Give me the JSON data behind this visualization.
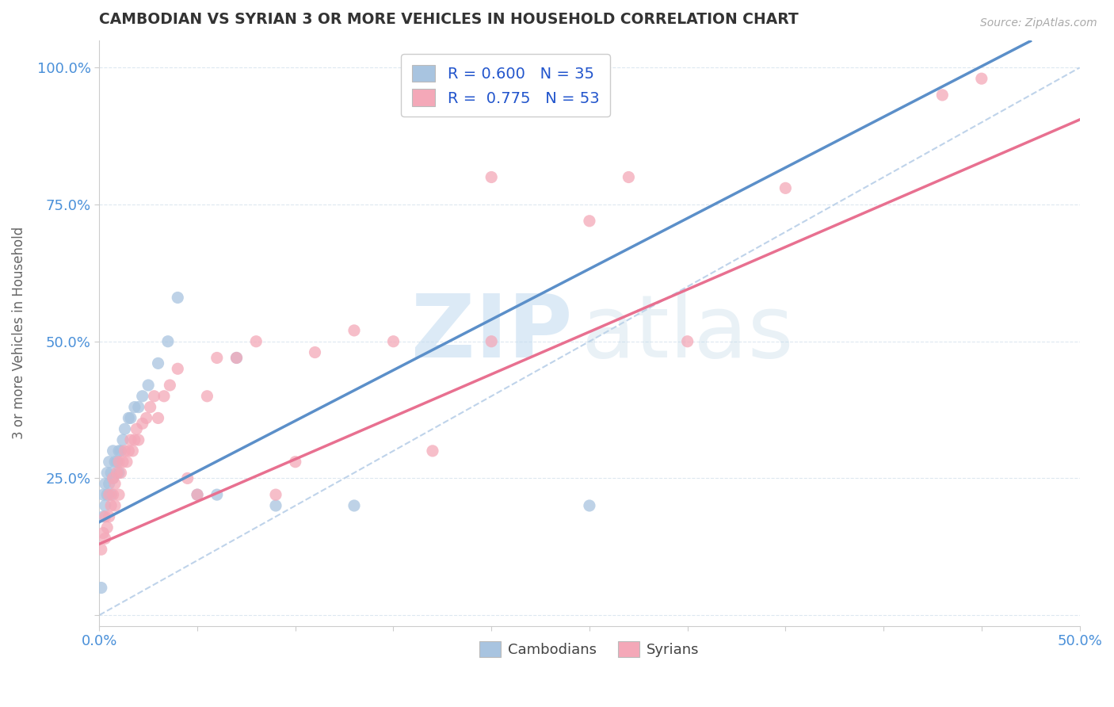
{
  "title": "CAMBODIAN VS SYRIAN 3 OR MORE VEHICLES IN HOUSEHOLD CORRELATION CHART",
  "source": "Source: ZipAtlas.com",
  "ylabel": "3 or more Vehicles in Household",
  "xlim": [
    0.0,
    0.5
  ],
  "ylim": [
    -0.02,
    1.05
  ],
  "yticks": [
    0.0,
    0.25,
    0.5,
    0.75,
    1.0
  ],
  "yticklabels": [
    "",
    "25.0%",
    "50.0%",
    "75.0%",
    "100.0%"
  ],
  "cambodian_R": 0.6,
  "cambodian_N": 35,
  "syrian_R": 0.775,
  "syrian_N": 53,
  "cambodian_color": "#a8c4e0",
  "syrian_color": "#f4a8b8",
  "cambodian_line_color": "#5b8fc9",
  "syrian_line_color": "#e87090",
  "background_color": "#ffffff",
  "grid_color": "#dde8f0",
  "title_color": "#333333",
  "axis_label_color": "#4a90d9",
  "cam_slope": 1.85,
  "cam_intercept": 0.17,
  "syr_slope": 1.55,
  "syr_intercept": 0.13,
  "cambodian_x": [
    0.001,
    0.002,
    0.002,
    0.003,
    0.003,
    0.004,
    0.004,
    0.005,
    0.005,
    0.006,
    0.006,
    0.007,
    0.007,
    0.008,
    0.009,
    0.01,
    0.01,
    0.011,
    0.012,
    0.013,
    0.015,
    0.016,
    0.018,
    0.02,
    0.022,
    0.025,
    0.03,
    0.035,
    0.04,
    0.05,
    0.06,
    0.07,
    0.09,
    0.13,
    0.25
  ],
  "cambodian_y": [
    0.05,
    0.18,
    0.22,
    0.2,
    0.24,
    0.22,
    0.26,
    0.24,
    0.28,
    0.22,
    0.26,
    0.25,
    0.3,
    0.28,
    0.28,
    0.26,
    0.3,
    0.3,
    0.32,
    0.34,
    0.36,
    0.36,
    0.38,
    0.38,
    0.4,
    0.42,
    0.46,
    0.5,
    0.58,
    0.22,
    0.22,
    0.47,
    0.2,
    0.2,
    0.2
  ],
  "syrian_x": [
    0.001,
    0.002,
    0.003,
    0.003,
    0.004,
    0.005,
    0.005,
    0.006,
    0.007,
    0.007,
    0.008,
    0.008,
    0.009,
    0.01,
    0.01,
    0.011,
    0.012,
    0.013,
    0.014,
    0.015,
    0.016,
    0.017,
    0.018,
    0.019,
    0.02,
    0.022,
    0.024,
    0.026,
    0.028,
    0.03,
    0.033,
    0.036,
    0.04,
    0.045,
    0.05,
    0.055,
    0.06,
    0.07,
    0.08,
    0.09,
    0.1,
    0.11,
    0.13,
    0.15,
    0.17,
    0.2,
    0.2,
    0.25,
    0.27,
    0.3,
    0.35,
    0.43,
    0.45
  ],
  "syrian_y": [
    0.12,
    0.15,
    0.14,
    0.18,
    0.16,
    0.18,
    0.22,
    0.2,
    0.22,
    0.25,
    0.2,
    0.24,
    0.26,
    0.22,
    0.28,
    0.26,
    0.28,
    0.3,
    0.28,
    0.3,
    0.32,
    0.3,
    0.32,
    0.34,
    0.32,
    0.35,
    0.36,
    0.38,
    0.4,
    0.36,
    0.4,
    0.42,
    0.45,
    0.25,
    0.22,
    0.4,
    0.47,
    0.47,
    0.5,
    0.22,
    0.28,
    0.48,
    0.52,
    0.5,
    0.3,
    0.5,
    0.8,
    0.72,
    0.8,
    0.5,
    0.78,
    0.95,
    0.98
  ]
}
